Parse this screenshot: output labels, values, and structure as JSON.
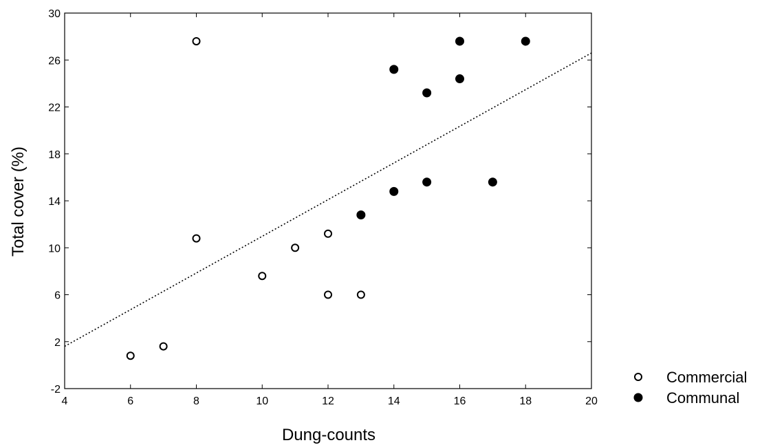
{
  "chart_data": {
    "type": "scatter",
    "title": "",
    "xlabel": "Dung-counts",
    "ylabel": "Total cover (%)",
    "xlim": [
      4,
      20
    ],
    "ylim": [
      -2,
      30
    ],
    "x_ticks": [
      "4",
      "6",
      "8",
      "10",
      "12",
      "14",
      "16",
      "18",
      "20"
    ],
    "y_ticks": [
      "-2",
      "2",
      "6",
      "10",
      "14",
      "18",
      "22",
      "26",
      "30"
    ],
    "grid": false,
    "legend_position": "bottom-right-outside",
    "series": [
      {
        "name": "Commercial",
        "marker": "open-circle",
        "color": "#000000",
        "points": [
          {
            "x": 6,
            "y": 0.8
          },
          {
            "x": 7,
            "y": 1.6
          },
          {
            "x": 8,
            "y": 27.6
          },
          {
            "x": 8,
            "y": 10.8
          },
          {
            "x": 10,
            "y": 7.6
          },
          {
            "x": 11,
            "y": 10.0
          },
          {
            "x": 12,
            "y": 11.2
          },
          {
            "x": 12,
            "y": 6.0
          },
          {
            "x": 13,
            "y": 6.0
          }
        ]
      },
      {
        "name": "Communal",
        "marker": "filled-circle",
        "color": "#000000",
        "points": [
          {
            "x": 13,
            "y": 12.8
          },
          {
            "x": 14,
            "y": 25.2
          },
          {
            "x": 14,
            "y": 14.8
          },
          {
            "x": 15,
            "y": 23.2
          },
          {
            "x": 15,
            "y": 15.6
          },
          {
            "x": 16,
            "y": 27.6
          },
          {
            "x": 16,
            "y": 24.4
          },
          {
            "x": 17,
            "y": 15.6
          },
          {
            "x": 18,
            "y": 27.6
          }
        ]
      }
    ],
    "trendline": {
      "style": "dotted",
      "color": "#000000",
      "start": {
        "x": 4,
        "y": 1.6
      },
      "end": {
        "x": 20,
        "y": 26.6
      }
    }
  }
}
